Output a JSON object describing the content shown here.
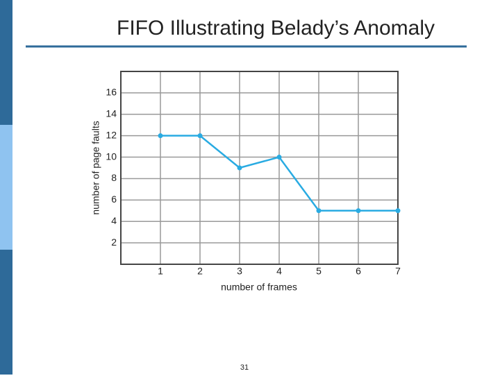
{
  "page_number": "31",
  "chart_data": {
    "type": "line",
    "title": "FIFO Illustrating Belady’s Anomaly",
    "x_label": "number of frames",
    "y_label": "number of page faults",
    "x": [
      1,
      2,
      3,
      4,
      5,
      6,
      7
    ],
    "series": [
      {
        "name": "page faults",
        "color": "#29abe2",
        "values": [
          12,
          12,
          9,
          10,
          5,
          5,
          5
        ]
      }
    ],
    "xlim": [
      0,
      7
    ],
    "xticks": [
      1,
      2,
      3,
      4,
      5,
      6,
      7
    ],
    "ylim": [
      0,
      18
    ],
    "yticks": [
      2,
      4,
      6,
      8,
      10,
      12,
      14,
      16
    ],
    "grid": true
  }
}
